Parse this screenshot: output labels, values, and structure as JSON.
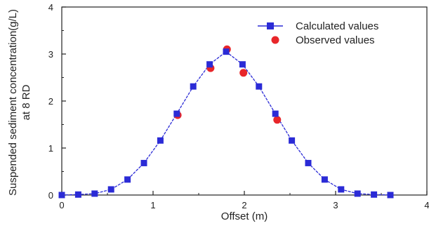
{
  "chart_data": {
    "type": "line",
    "xlabel": "Offset (m)",
    "ylabel_lines": [
      "Suspended sediment concentration(g/L)",
      "at 8 RD"
    ],
    "xlim": [
      0,
      4
    ],
    "ylim": [
      0,
      4
    ],
    "xticks": [
      0,
      1,
      2,
      3,
      4
    ],
    "yticks": [
      0,
      1,
      2,
      3,
      4
    ],
    "xtick_labels": [
      "0",
      "1",
      "2",
      "3",
      "4"
    ],
    "ytick_labels": [
      "0",
      "1",
      "2",
      "3",
      "4"
    ],
    "grid": false,
    "legend_position": "top-right",
    "series": [
      {
        "name": "Calculated values",
        "style": "line-with-square-markers",
        "color": "#2b2bd6",
        "x": [
          0.0,
          0.18,
          0.36,
          0.54,
          0.72,
          0.9,
          1.08,
          1.26,
          1.44,
          1.62,
          1.8,
          1.98,
          2.16,
          2.34,
          2.52,
          2.7,
          2.88,
          3.06,
          3.24,
          3.42,
          3.6
        ],
        "y": [
          0.0,
          0.01,
          0.03,
          0.12,
          0.33,
          0.68,
          1.16,
          1.73,
          2.31,
          2.78,
          3.05,
          2.78,
          2.31,
          1.73,
          1.16,
          0.68,
          0.33,
          0.12,
          0.03,
          0.01,
          0.0
        ]
      },
      {
        "name": "Observed values",
        "style": "circle-markers",
        "color": "#e8262a",
        "x": [
          1.27,
          1.63,
          1.81,
          1.99,
          2.36
        ],
        "y": [
          1.7,
          2.7,
          3.1,
          2.6,
          1.6
        ]
      }
    ]
  }
}
